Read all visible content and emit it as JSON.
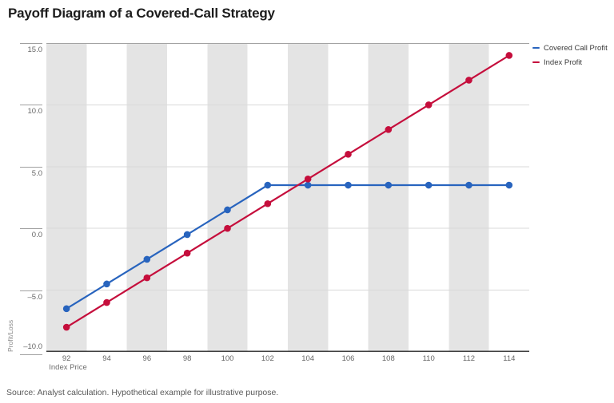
{
  "title": "Payoff Diagram of a Covered-Call Strategy",
  "source": "Source: Analyst calculation. Hypothetical example for illustrative purpose.",
  "chart_data": {
    "type": "line",
    "title": "Payoff Diagram of a Covered-Call Strategy",
    "xlabel": "Index Price",
    "ylabel": "Profit/Loss",
    "x": [
      92,
      94,
      96,
      98,
      100,
      102,
      104,
      106,
      108,
      110,
      112,
      114
    ],
    "series": [
      {
        "name": "Covered Call Profit",
        "color": "#2864be",
        "values": [
          -6.5,
          -4.5,
          -2.5,
          -0.5,
          1.5,
          3.5,
          3.5,
          3.5,
          3.5,
          3.5,
          3.5,
          3.5
        ]
      },
      {
        "name": "Index Profit",
        "color": "#c50e3c",
        "values": [
          -8,
          -6,
          -4,
          -2,
          0,
          2,
          4,
          6,
          8,
          10,
          12,
          14
        ]
      }
    ],
    "ylim": [
      -10,
      15
    ],
    "yticks": [
      {
        "value": 15,
        "label": "15.0"
      },
      {
        "value": 10,
        "label": "10.0"
      },
      {
        "value": 5,
        "label": "5.0"
      },
      {
        "value": 0,
        "label": "0.0"
      },
      {
        "value": -5,
        "label": "–5.0"
      },
      {
        "value": -10,
        "label": "–10.0"
      }
    ],
    "grid": "horizontal",
    "legend_position": "top-right",
    "plot_style": {
      "band_color": "#e4e4e4",
      "grid_color": "#d9d9d9",
      "top_border_color": "#a3a3a3",
      "axis_color": "#3f3f3f",
      "marker_radius": 4.3,
      "line_width": 2.2
    }
  }
}
